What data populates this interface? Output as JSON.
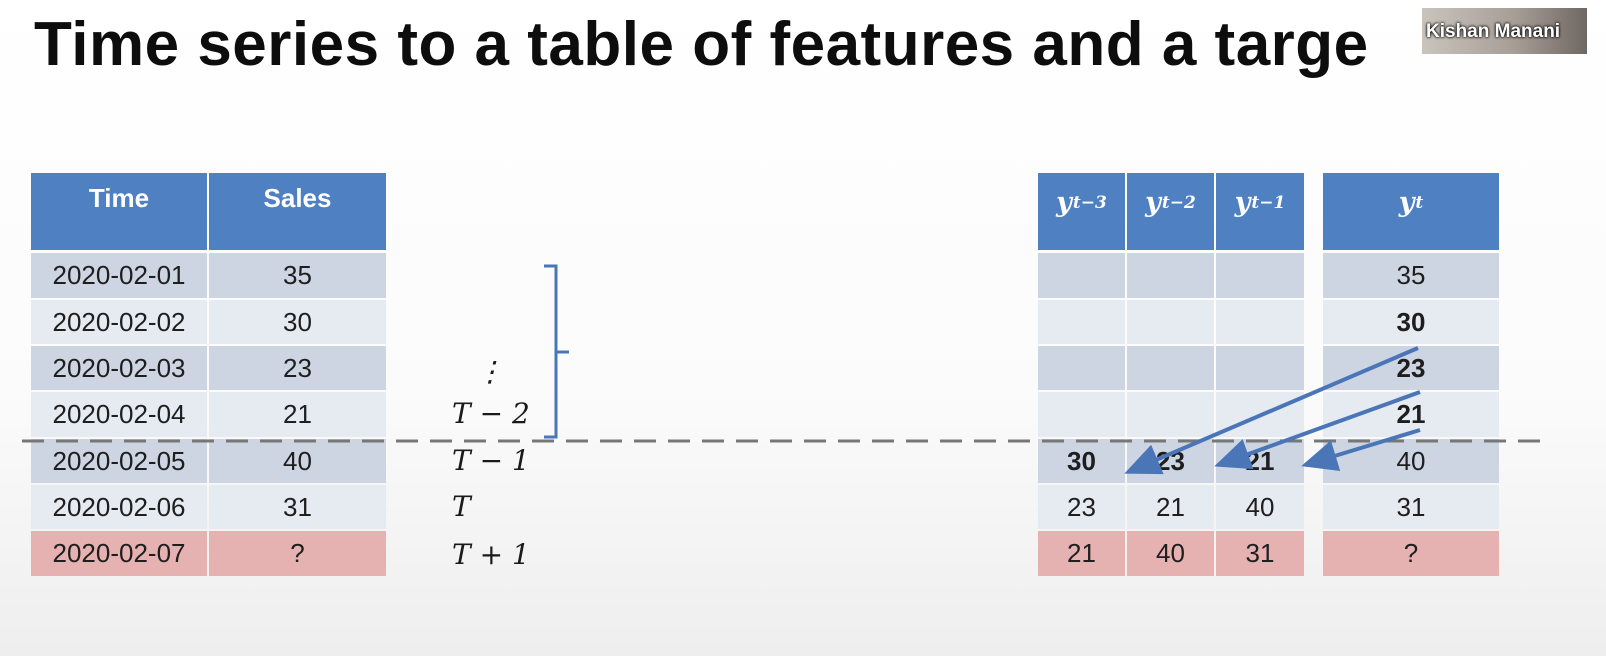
{
  "title": "Time series to a table of features and a targe",
  "video": {
    "presenter_name": "Kishan Manani"
  },
  "colors": {
    "header_blue": "#4f81c2",
    "row_dark": "#cdd5e3",
    "row_light": "#e6eaf1",
    "row_unknown": "#e6b1b1",
    "arrow_blue": "#4a76b8",
    "dashed_line": "#777777"
  },
  "left_table": {
    "headers": [
      "Time",
      "Sales"
    ],
    "rows": [
      {
        "time": "2020-02-01",
        "sales": "35"
      },
      {
        "time": "2020-02-02",
        "sales": "30"
      },
      {
        "time": "2020-02-03",
        "sales": "23"
      },
      {
        "time": "2020-02-04",
        "sales": "21"
      },
      {
        "time": "2020-02-05",
        "sales": "40"
      },
      {
        "time": "2020-02-06",
        "sales": "31"
      },
      {
        "time": "2020-02-07",
        "sales": "?"
      }
    ]
  },
  "time_labels": [
    "⋮",
    "T − 2",
    "T − 1",
    "T",
    "T + 1"
  ],
  "feature_table": {
    "headers": [
      {
        "base": "y",
        "sub": "t−3"
      },
      {
        "base": "y",
        "sub": "t−2"
      },
      {
        "base": "y",
        "sub": "t−1"
      }
    ],
    "rows": [
      [
        "",
        "",
        ""
      ],
      [
        "",
        "",
        ""
      ],
      [
        "",
        "",
        ""
      ],
      [
        "",
        "",
        ""
      ],
      [
        "30",
        "23",
        "21"
      ],
      [
        "23",
        "21",
        "40"
      ],
      [
        "21",
        "40",
        "31"
      ]
    ]
  },
  "target_table": {
    "header": {
      "base": "y",
      "sub": "t"
    },
    "rows": [
      "35",
      "30",
      "23",
      "21",
      "40",
      "31",
      "?"
    ]
  }
}
